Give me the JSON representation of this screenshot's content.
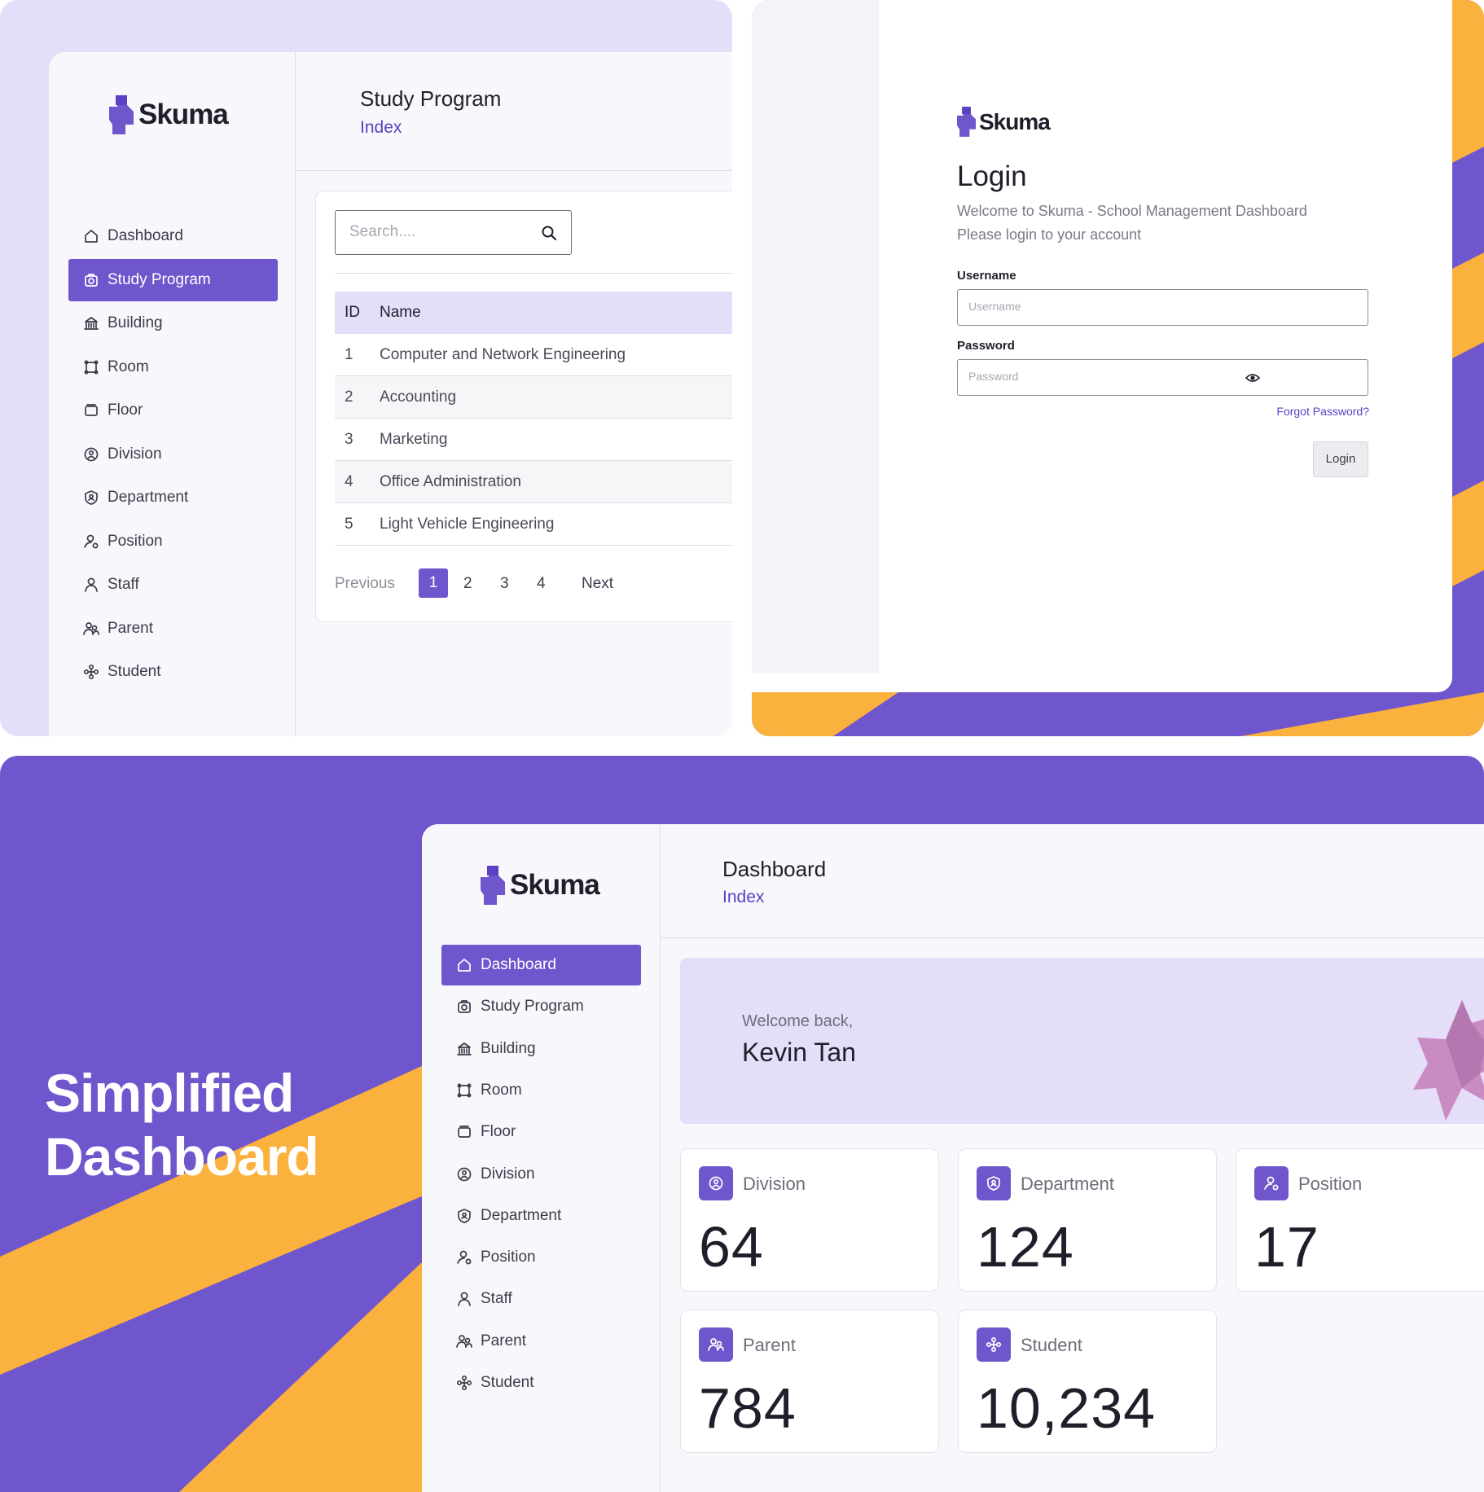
{
  "colors": {
    "brand": "#6f56cd",
    "brand_light": "#e4def9",
    "accent": "#fbb13d",
    "surface": "#f8f8fc"
  },
  "study_program_screen": {
    "brand": "Skuma",
    "header": {
      "title": "Study Program",
      "subtitle": "Index"
    },
    "sidebar": {
      "items": [
        {
          "label": "Dashboard",
          "icon": "home-icon"
        },
        {
          "label": "Study Program",
          "icon": "study-program-icon",
          "active": true
        },
        {
          "label": "Building",
          "icon": "building-icon"
        },
        {
          "label": "Room",
          "icon": "room-icon"
        },
        {
          "label": "Floor",
          "icon": "floor-icon"
        },
        {
          "label": "Division",
          "icon": "division-icon"
        },
        {
          "label": "Department",
          "icon": "department-icon"
        },
        {
          "label": "Position",
          "icon": "position-icon"
        },
        {
          "label": "Staff",
          "icon": "staff-icon"
        },
        {
          "label": "Parent",
          "icon": "parent-icon"
        },
        {
          "label": "Student",
          "icon": "student-icon"
        }
      ]
    },
    "search": {
      "placeholder": "Search...."
    },
    "table": {
      "columns": [
        "ID",
        "Name"
      ],
      "rows": [
        [
          "1",
          "Computer and Network Engineering"
        ],
        [
          "2",
          "Accounting"
        ],
        [
          "3",
          "Marketing"
        ],
        [
          "4",
          "Office Administration"
        ],
        [
          "5",
          "Light Vehicle Engineering"
        ]
      ]
    },
    "pagination": {
      "previous": "Previous",
      "pages": [
        "1",
        "2",
        "3",
        "4"
      ],
      "current": "1",
      "next": "Next"
    }
  },
  "login_screen": {
    "brand": "Skuma",
    "title": "Login",
    "welcome_line1": "Welcome to Skuma - School Management Dashboard",
    "welcome_line2": "Please login to your account",
    "username_label": "Username",
    "username_placeholder": "Username",
    "password_label": "Password",
    "password_placeholder": "Password",
    "forgot_password": "Forgot Password?",
    "login_button": "Login"
  },
  "dashboard_screen": {
    "hero_line1": "Simplified",
    "hero_line2": "Dashboard",
    "brand": "Skuma",
    "header": {
      "title": "Dashboard",
      "subtitle": "Index"
    },
    "sidebar": {
      "items": [
        {
          "label": "Dashboard",
          "icon": "home-icon",
          "active": true
        },
        {
          "label": "Study Program",
          "icon": "study-program-icon"
        },
        {
          "label": "Building",
          "icon": "building-icon"
        },
        {
          "label": "Room",
          "icon": "room-icon"
        },
        {
          "label": "Floor",
          "icon": "floor-icon"
        },
        {
          "label": "Division",
          "icon": "division-icon"
        },
        {
          "label": "Department",
          "icon": "department-icon"
        },
        {
          "label": "Position",
          "icon": "position-icon"
        },
        {
          "label": "Staff",
          "icon": "staff-icon"
        },
        {
          "label": "Parent",
          "icon": "parent-icon"
        },
        {
          "label": "Student",
          "icon": "student-icon"
        }
      ]
    },
    "welcome": {
      "greeting": "Welcome back,",
      "name": "Kevin Tan"
    },
    "stats": [
      {
        "label": "Division",
        "value": "64",
        "icon": "division-icon"
      },
      {
        "label": "Department",
        "value": "124",
        "icon": "department-icon"
      },
      {
        "label": "Position",
        "value": "17",
        "icon": "position-icon"
      },
      {
        "label": "Parent",
        "value": "784",
        "icon": "parent-icon"
      },
      {
        "label": "Student",
        "value": "10,234",
        "icon": "student-icon"
      }
    ]
  }
}
